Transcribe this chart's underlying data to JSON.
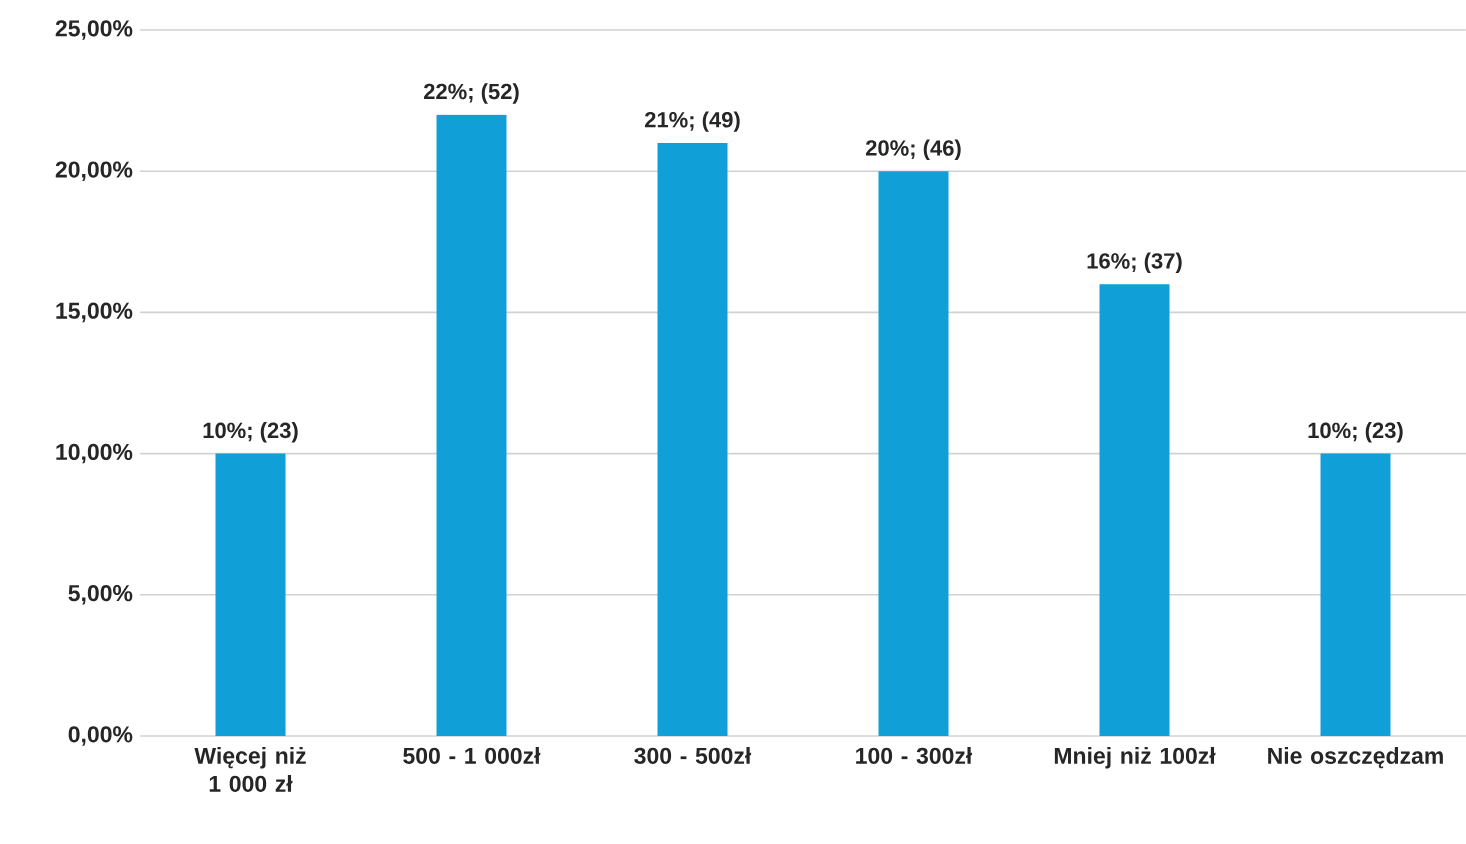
{
  "chart_data": {
    "type": "bar",
    "categories": [
      "Więcej niż 1 000 zł",
      "500 - 1 000zł",
      "300 - 500zł",
      "100 - 300zł",
      "Mniej niż 100zł",
      "Nie oszczędzam"
    ],
    "values": [
      10,
      22,
      21,
      20,
      16,
      10
    ],
    "value_labels": [
      "10%; (23)",
      "22%; (52)",
      "21%; (49)",
      "20%; (46)",
      "16%; (37)",
      "10%; (23)"
    ],
    "color": "#109fd6",
    "ylim": [
      0,
      25
    ],
    "yticks": [
      {
        "value": 0,
        "label": "0,00%"
      },
      {
        "value": 5,
        "label": "5,00%"
      },
      {
        "value": 10,
        "label": "10,00%"
      },
      {
        "value": 15,
        "label": "15,00%"
      },
      {
        "value": 20,
        "label": "20,00%"
      },
      {
        "value": 25,
        "label": "25,00%"
      }
    ],
    "grid": "y"
  }
}
